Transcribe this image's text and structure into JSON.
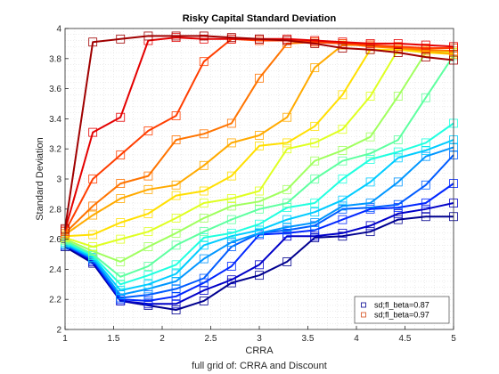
{
  "chart_data": {
    "type": "line",
    "title": "Risky Capital Standard Deviation",
    "xlabel": "CRRA",
    "ylabel": "Standard Deviation",
    "subtitle": "full grid of: CRRA and Discount",
    "xlim": [
      1,
      5
    ],
    "ylim": [
      2,
      4
    ],
    "xticks": [
      "1",
      "1.5",
      "2",
      "2.5",
      "3",
      "3.5",
      "4",
      "4.5",
      "5"
    ],
    "yticks": [
      "2",
      "2.2",
      "2.4",
      "2.6",
      "2.8",
      "3",
      "3.2",
      "3.4",
      "3.6",
      "3.8",
      "4"
    ],
    "grid": "minor-dotted",
    "legend_position": "bottom-right",
    "legend": [
      {
        "label": "sd;fl_beta=0.87",
        "color": "#00008f"
      },
      {
        "label": "sd;fl_beta=0.97",
        "color": "#d44b1a"
      }
    ],
    "x": [
      1,
      1.286,
      1.571,
      1.857,
      2.143,
      2.429,
      2.714,
      3,
      3.286,
      3.571,
      3.857,
      4.143,
      4.429,
      4.714,
      5
    ],
    "series": [
      {
        "color": "#00008f",
        "values": [
          2.55,
          2.44,
          2.19,
          2.16,
          2.13,
          2.19,
          2.31,
          2.36,
          2.45,
          2.61,
          2.62,
          2.65,
          2.73,
          2.75,
          2.75
        ]
      },
      {
        "color": "#0000c8",
        "values": [
          2.56,
          2.45,
          2.19,
          2.17,
          2.17,
          2.26,
          2.33,
          2.43,
          2.62,
          2.62,
          2.64,
          2.69,
          2.77,
          2.8,
          2.84
        ]
      },
      {
        "color": "#0026ff",
        "values": [
          2.56,
          2.46,
          2.2,
          2.19,
          2.22,
          2.31,
          2.42,
          2.63,
          2.64,
          2.66,
          2.73,
          2.8,
          2.81,
          2.84,
          2.97
        ]
      },
      {
        "color": "#005cff",
        "values": [
          2.56,
          2.47,
          2.21,
          2.23,
          2.27,
          2.34,
          2.55,
          2.64,
          2.66,
          2.69,
          2.8,
          2.81,
          2.83,
          2.96,
          3.16
        ]
      },
      {
        "color": "#0096ff",
        "values": [
          2.57,
          2.47,
          2.23,
          2.27,
          2.32,
          2.47,
          2.58,
          2.64,
          2.68,
          2.71,
          2.82,
          2.84,
          2.98,
          3.15,
          3.21
        ]
      },
      {
        "color": "#00ccff",
        "values": [
          2.57,
          2.48,
          2.26,
          2.3,
          2.37,
          2.56,
          2.62,
          2.66,
          2.73,
          2.78,
          2.86,
          2.98,
          3.14,
          3.19,
          3.26
        ]
      },
      {
        "color": "#20ffdf",
        "values": [
          2.58,
          2.49,
          2.3,
          2.36,
          2.43,
          2.61,
          2.64,
          2.7,
          2.81,
          2.84,
          3.0,
          3.13,
          3.18,
          3.24,
          3.37
        ]
      },
      {
        "color": "#5effa0",
        "values": [
          2.59,
          2.5,
          2.35,
          2.42,
          2.56,
          2.65,
          2.73,
          2.8,
          2.84,
          3.0,
          3.12,
          3.17,
          3.26,
          3.54,
          3.82
        ]
      },
      {
        "color": "#a0ff5e",
        "values": [
          2.6,
          2.52,
          2.45,
          2.55,
          2.64,
          2.74,
          2.82,
          2.85,
          2.93,
          3.12,
          3.19,
          3.28,
          3.55,
          3.84,
          3.84
        ]
      },
      {
        "color": "#dfff20",
        "values": [
          2.61,
          2.55,
          2.6,
          2.65,
          2.74,
          2.84,
          2.87,
          2.92,
          3.2,
          3.24,
          3.33,
          3.55,
          3.86,
          3.86,
          3.84
        ]
      },
      {
        "color": "#ffdf00",
        "values": [
          2.62,
          2.63,
          2.71,
          2.77,
          2.89,
          2.92,
          3.02,
          3.22,
          3.24,
          3.35,
          3.56,
          3.86,
          3.86,
          3.84,
          3.83
        ]
      },
      {
        "color": "#ffaa00",
        "values": [
          2.63,
          2.76,
          2.87,
          2.93,
          2.96,
          3.09,
          3.24,
          3.29,
          3.41,
          3.74,
          3.89,
          3.89,
          3.87,
          3.85,
          3.83
        ]
      },
      {
        "color": "#ff7400",
        "values": [
          2.64,
          2.82,
          2.97,
          3.02,
          3.26,
          3.3,
          3.37,
          3.67,
          3.9,
          3.91,
          3.9,
          3.88,
          3.87,
          3.86,
          3.85
        ]
      },
      {
        "color": "#ff3e00",
        "values": [
          2.65,
          3.0,
          3.16,
          3.32,
          3.42,
          3.78,
          3.93,
          3.92,
          3.92,
          3.91,
          3.9,
          3.89,
          3.88,
          3.87,
          3.87
        ]
      },
      {
        "color": "#e40000",
        "values": [
          2.66,
          3.31,
          3.41,
          3.92,
          3.94,
          3.93,
          3.93,
          3.93,
          3.93,
          3.92,
          3.91,
          3.9,
          3.9,
          3.89,
          3.88
        ]
      },
      {
        "color": "#a00000",
        "values": [
          2.67,
          3.91,
          3.93,
          3.95,
          3.95,
          3.95,
          3.94,
          3.93,
          3.92,
          3.9,
          3.87,
          3.86,
          3.84,
          3.81,
          3.79
        ]
      }
    ]
  }
}
